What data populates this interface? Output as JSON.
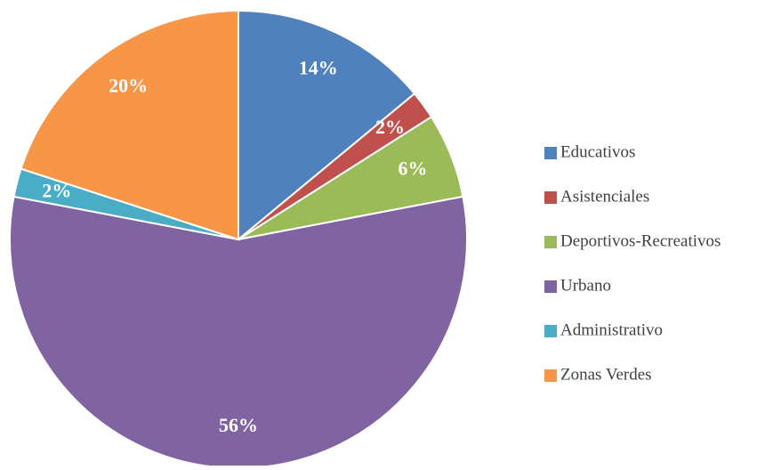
{
  "chart_data": {
    "type": "pie",
    "categories": [
      "Educativos",
      "Asistenciales",
      "Deportivos-Recreativos",
      "Urbano",
      "Administrativo",
      "Zonas Verdes"
    ],
    "values": [
      14,
      2,
      6,
      56,
      2,
      20
    ],
    "value_labels": [
      "14%",
      "2%",
      "6%",
      "56%",
      "2%",
      "20%"
    ],
    "colors": [
      "#4f81bd",
      "#c0504d",
      "#9bbb59",
      "#8064a2",
      "#4bacc6",
      "#f79646"
    ],
    "legend": "right"
  }
}
